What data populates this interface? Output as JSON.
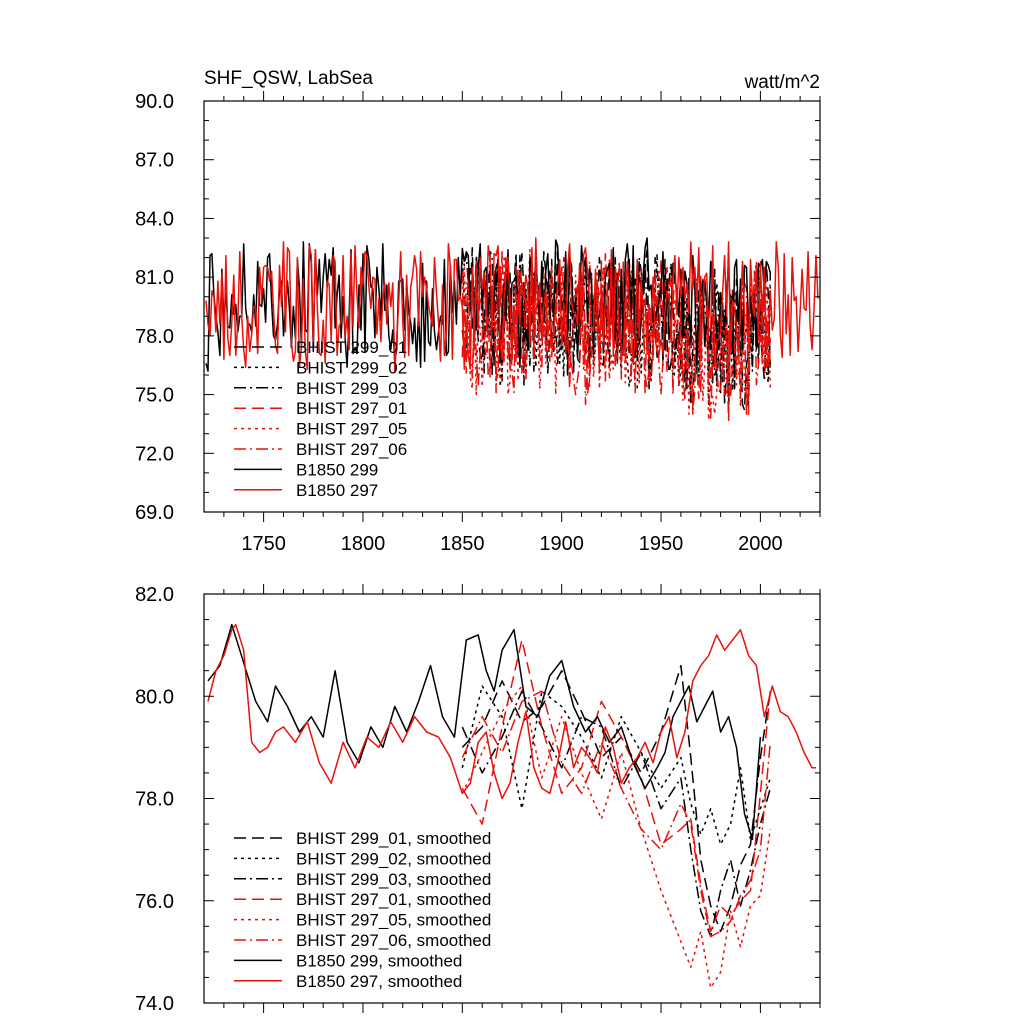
{
  "chart_data": [
    {
      "type": "line",
      "title_left": "SHF_QSW, LabSea",
      "title_right": "watt/m^2",
      "xlabel": "",
      "ylabel": "",
      "xlim": [
        1720,
        2030
      ],
      "ylim": [
        69,
        90
      ],
      "x_ticks": [
        1750,
        1800,
        1850,
        1900,
        1950,
        2000
      ],
      "x_tick_labels": [
        "1750",
        "1800",
        "1850",
        "1900",
        "1950",
        "2000"
      ],
      "y_ticks": [
        69,
        72,
        75,
        78,
        81,
        84,
        87,
        90
      ],
      "y_tick_labels": [
        "69.0",
        "72.0",
        "75.0",
        "78.0",
        "81.0",
        "84.0",
        "87.0",
        "90.0"
      ],
      "legend_position": "lower-left",
      "series": [
        {
          "name": "BHIST 299_01",
          "color": "#000000",
          "dash": "dash",
          "x_start": 1850,
          "x_end": 2005,
          "mean": 79.3,
          "amp": 3.3,
          "seed": 11,
          "values": []
        },
        {
          "name": "BHIST 299_02",
          "color": "#000000",
          "dash": "dot",
          "x_start": 1850,
          "x_end": 2005,
          "mean": 79.0,
          "amp": 3.5,
          "seed": 23,
          "values": []
        },
        {
          "name": "BHIST 299_03",
          "color": "#000000",
          "dash": "dashdot",
          "x_start": 1850,
          "x_end": 2005,
          "mean": 79.1,
          "amp": 3.4,
          "seed": 37,
          "values": []
        },
        {
          "name": "BHIST 297_01",
          "color": "#e8120c",
          "dash": "dash",
          "x_start": 1850,
          "x_end": 2005,
          "mean": 78.8,
          "amp": 3.4,
          "seed": 41,
          "values": []
        },
        {
          "name": "BHIST 297_05",
          "color": "#e8120c",
          "dash": "dot",
          "x_start": 1850,
          "x_end": 2005,
          "mean": 78.6,
          "amp": 3.6,
          "seed": 53,
          "values": []
        },
        {
          "name": "BHIST 297_06",
          "color": "#e8120c",
          "dash": "dashdot",
          "x_start": 1850,
          "x_end": 2005,
          "mean": 78.7,
          "amp": 3.5,
          "seed": 67,
          "values": []
        },
        {
          "name": "B1850 299",
          "color": "#000000",
          "dash": "solid",
          "x_start": 1721,
          "x_end": 2005,
          "mean": 79.8,
          "amp": 3.0,
          "seed": 71,
          "values": []
        },
        {
          "name": "B1850 297",
          "color": "#e8120c",
          "dash": "solid",
          "x_start": 1721,
          "x_end": 2029,
          "mean": 79.6,
          "amp": 3.2,
          "seed": 83,
          "values": []
        }
      ]
    },
    {
      "type": "line",
      "title_left": "",
      "title_right": "",
      "xlabel": "",
      "ylabel": "",
      "xlim": [
        1720,
        2030
      ],
      "ylim": [
        74,
        82
      ],
      "x_ticks": [
        1750,
        1800,
        1850,
        1900,
        1950,
        2000
      ],
      "x_tick_labels": [],
      "y_ticks": [
        74,
        76,
        78,
        80,
        82
      ],
      "y_tick_labels": [
        "74.0",
        "76.0",
        "78.0",
        "80.0",
        "82.0"
      ],
      "legend_position": "lower-left",
      "series": [
        {
          "name": "BHIST 299_01, smoothed",
          "color": "#000000",
          "dash": "dash",
          "x": [
            1850,
            1860,
            1870,
            1880,
            1890,
            1900,
            1910,
            1920,
            1930,
            1940,
            1950,
            1960,
            1965,
            1970,
            1975,
            1980,
            1985,
            1990,
            1995,
            2000,
            2005
          ],
          "values": [
            79.0,
            79.4,
            80.3,
            79.5,
            79.8,
            80.5,
            79.7,
            78.8,
            79.2,
            78.5,
            79.3,
            80.6,
            78.8,
            76.8,
            75.9,
            75.4,
            75.9,
            76.7,
            77.1,
            78.8,
            80.1
          ]
        },
        {
          "name": "BHIST 299_02, smoothed",
          "color": "#000000",
          "dash": "dot",
          "x": [
            1850,
            1860,
            1870,
            1880,
            1890,
            1900,
            1910,
            1920,
            1930,
            1940,
            1950,
            1960,
            1965,
            1970,
            1975,
            1980,
            1985,
            1990,
            1995,
            2000,
            2005
          ],
          "values": [
            78.6,
            80.2,
            79.6,
            77.8,
            80.1,
            79.8,
            79.2,
            78.4,
            79.6,
            78.9,
            78.2,
            78.8,
            77.9,
            77.3,
            77.8,
            77.1,
            77.5,
            78.6,
            77.2,
            77.8,
            78.4
          ]
        },
        {
          "name": "BHIST 299_03, smoothed",
          "color": "#000000",
          "dash": "dashdot",
          "x": [
            1850,
            1860,
            1870,
            1880,
            1890,
            1900,
            1910,
            1920,
            1930,
            1940,
            1950,
            1960,
            1965,
            1970,
            1975,
            1980,
            1985,
            1990,
            1995,
            2000,
            2005
          ],
          "values": [
            79.4,
            78.5,
            79.2,
            80.1,
            79.4,
            78.6,
            79.6,
            79.4,
            78.2,
            78.9,
            77.8,
            78.4,
            77.0,
            75.8,
            75.3,
            76.2,
            76.8,
            75.9,
            76.6,
            77.5,
            78.2
          ]
        },
        {
          "name": "BHIST 297_01, smoothed",
          "color": "#e8120c",
          "dash": "dash",
          "x": [
            1850,
            1860,
            1870,
            1880,
            1890,
            1900,
            1910,
            1920,
            1930,
            1940,
            1950,
            1960,
            1965,
            1970,
            1975,
            1980,
            1985,
            1990,
            1995,
            2000,
            2005
          ],
          "values": [
            78.2,
            77.5,
            79.4,
            81.1,
            79.4,
            78.1,
            78.6,
            79.9,
            79.2,
            78.4,
            77.1,
            77.4,
            77.6,
            76.3,
            75.4,
            75.9,
            75.7,
            76.0,
            76.2,
            78.1,
            80.1
          ]
        },
        {
          "name": "BHIST 297_05, smoothed",
          "color": "#e8120c",
          "dash": "dot",
          "x": [
            1850,
            1860,
            1870,
            1880,
            1890,
            1900,
            1910,
            1920,
            1930,
            1940,
            1950,
            1960,
            1965,
            1970,
            1975,
            1980,
            1985,
            1990,
            1995,
            2000,
            2005
          ],
          "values": [
            78.1,
            78.9,
            79.7,
            80.2,
            78.4,
            79.6,
            78.5,
            77.6,
            78.9,
            77.4,
            76.2,
            75.2,
            74.7,
            75.4,
            74.3,
            74.6,
            75.8,
            75.1,
            75.9,
            76.1,
            77.4
          ]
        },
        {
          "name": "BHIST 297_06, smoothed",
          "color": "#e8120c",
          "dash": "dashdot",
          "x": [
            1850,
            1860,
            1870,
            1880,
            1890,
            1900,
            1910,
            1920,
            1930,
            1940,
            1950,
            1960,
            1965,
            1970,
            1975,
            1980,
            1985,
            1990,
            1995,
            2000,
            2005
          ],
          "values": [
            78.8,
            79.6,
            78.9,
            79.9,
            80.1,
            78.7,
            78.1,
            79.1,
            78.2,
            77.4,
            77.0,
            77.9,
            77.5,
            76.2,
            75.3,
            75.4,
            75.6,
            76.1,
            76.4,
            77.0,
            79.1
          ]
        },
        {
          "name": "B1850 299, smoothed",
          "color": "#000000",
          "dash": "solid",
          "x": [
            1722,
            1728,
            1734,
            1738,
            1742,
            1746,
            1752,
            1756,
            1762,
            1768,
            1774,
            1780,
            1786,
            1792,
            1798,
            1804,
            1810,
            1816,
            1822,
            1828,
            1834,
            1840,
            1846,
            1852,
            1858,
            1862,
            1866,
            1870,
            1876,
            1882,
            1888,
            1894,
            1900,
            1906,
            1912,
            1918,
            1924,
            1930,
            1936,
            1942,
            1948,
            1952,
            1956,
            1960,
            1964,
            1968,
            1972,
            1976,
            1980,
            1984,
            1988,
            1992,
            1996,
            2000
          ],
          "values": [
            80.3,
            80.6,
            81.4,
            80.9,
            80.4,
            79.9,
            79.5,
            80.2,
            79.8,
            79.3,
            79.6,
            79.2,
            80.5,
            79.1,
            78.7,
            79.4,
            79.0,
            79.8,
            79.3,
            79.9,
            80.6,
            79.6,
            79.2,
            81.1,
            81.2,
            80.5,
            80.1,
            80.9,
            81.3,
            79.8,
            79.6,
            80.4,
            80.7,
            79.8,
            79.3,
            79.6,
            79.1,
            79.4,
            78.7,
            78.2,
            78.6,
            78.9,
            79.6,
            79.9,
            80.2,
            79.5,
            79.8,
            80.1,
            79.3,
            79.6,
            79.0,
            77.7,
            77.2,
            79.2
          ]
        },
        {
          "name": "B1850 297, smoothed",
          "color": "#e8120c",
          "dash": "solid",
          "x": [
            1722,
            1726,
            1730,
            1734,
            1736,
            1740,
            1744,
            1748,
            1752,
            1756,
            1760,
            1766,
            1772,
            1778,
            1784,
            1790,
            1796,
            1802,
            1808,
            1814,
            1820,
            1826,
            1832,
            1838,
            1844,
            1850,
            1854,
            1858,
            1862,
            1866,
            1870,
            1874,
            1878,
            1882,
            1886,
            1890,
            1894,
            1898,
            1902,
            1906,
            1910,
            1914,
            1918,
            1922,
            1926,
            1930,
            1934,
            1938,
            1942,
            1946,
            1950,
            1954,
            1958,
            1962,
            1966,
            1970,
            1974,
            1978,
            1982,
            1986,
            1990,
            1994,
            1998,
            2002,
            2006,
            2010,
            2014,
            2018,
            2022,
            2026,
            2028
          ],
          "values": [
            79.9,
            80.5,
            80.8,
            81.3,
            81.4,
            80.9,
            79.1,
            78.9,
            79.0,
            79.3,
            79.4,
            79.1,
            79.5,
            78.7,
            78.3,
            79.1,
            78.6,
            79.2,
            79.0,
            79.5,
            79.1,
            79.6,
            79.3,
            79.2,
            78.8,
            78.1,
            78.3,
            79.1,
            79.3,
            78.5,
            78.0,
            78.3,
            79.1,
            79.7,
            78.6,
            78.2,
            78.1,
            78.7,
            79.5,
            78.6,
            79.0,
            78.8,
            78.5,
            79.4,
            79.0,
            78.3,
            78.6,
            78.8,
            79.1,
            78.7,
            79.3,
            79.6,
            78.8,
            79.3,
            80.3,
            80.6,
            80.8,
            81.2,
            80.9,
            81.1,
            81.3,
            80.8,
            80.6,
            79.6,
            80.2,
            79.7,
            79.6,
            79.3,
            78.9,
            78.6,
            78.6
          ]
        }
      ]
    }
  ]
}
